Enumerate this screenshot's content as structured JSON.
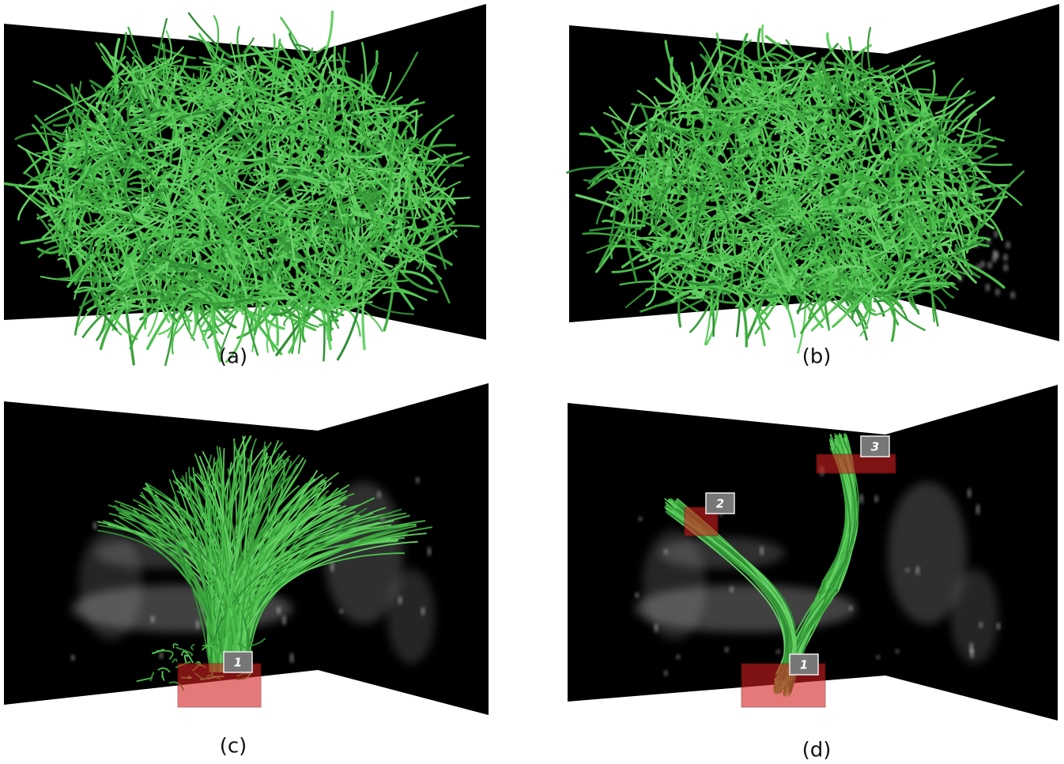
{
  "panels": [
    {
      "caption": "(a)"
    },
    {
      "caption": "(b)"
    },
    {
      "caption": "(c)",
      "rois": [
        "1"
      ]
    },
    {
      "caption": "(d)",
      "rois": [
        "1",
        "2",
        "3"
      ]
    }
  ]
}
